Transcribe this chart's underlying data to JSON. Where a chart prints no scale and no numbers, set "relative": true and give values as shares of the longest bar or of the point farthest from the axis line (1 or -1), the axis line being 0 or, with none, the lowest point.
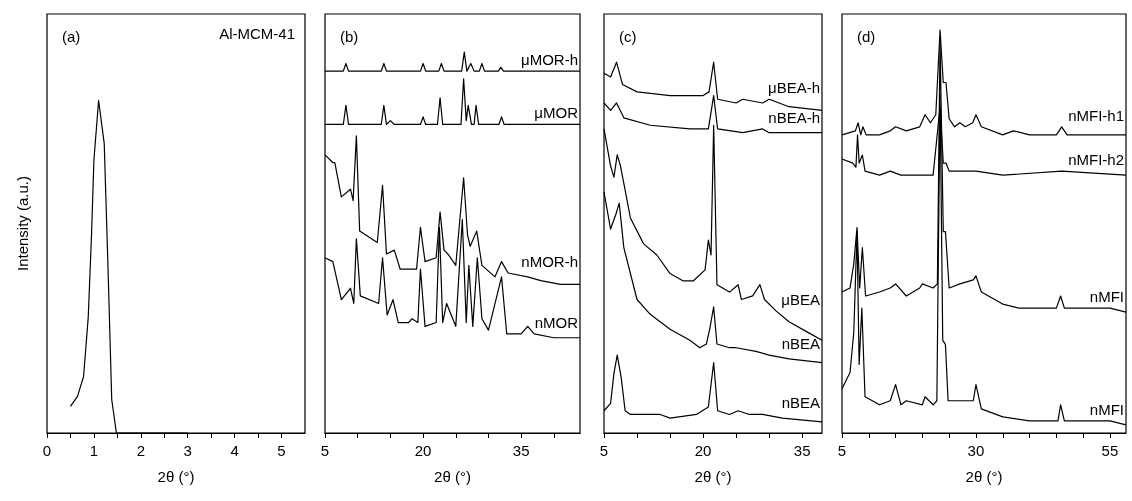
{
  "chart_data": [
    {
      "type": "line",
      "title": "(a)",
      "annotations": [
        "Al-MCM-41"
      ],
      "xlabel": "2θ (°)",
      "ylabel": "Intensity (a.u.)",
      "relative": true,
      "xlim": [
        0,
        5.5
      ],
      "xticks": [
        0,
        {
          "value": 0.5,
          "label": null
        },
        1,
        {
          "value": 1.5,
          "label": null
        },
        2,
        {
          "value": 2.5,
          "label": null
        },
        3,
        {
          "value": 3.5,
          "label": null
        },
        4,
        {
          "value": 4.5,
          "label": null
        },
        5
      ],
      "series": [
        {
          "color": "#000000",
          "x": [
            0.5,
            0.65,
            0.78,
            0.88,
            0.95,
            1.0,
            1.1,
            1.22,
            1.3,
            1.38,
            1.48,
            3.0
          ],
          "values": [
            0.08,
            0.11,
            0.17,
            0.35,
            0.6,
            0.82,
            1.0,
            0.87,
            0.5,
            0.1,
            0,
            0
          ]
        }
      ]
    },
    {
      "type": "line",
      "title": "(b)",
      "xlabel": "2θ (°)",
      "relative": true,
      "xlim": [
        5,
        44
      ],
      "xticks": [
        5,
        {
          "value": 10,
          "label": null
        },
        {
          "value": 15,
          "label": null
        },
        20,
        {
          "value": 25,
          "label": null
        },
        {
          "value": 30,
          "label": null
        },
        35,
        {
          "value": 40,
          "label": null
        }
      ],
      "series": [
        {
          "name": "μMOR-h",
          "color": "#000000",
          "x": [
            5,
            7.8,
            8.2,
            8.6,
            13.6,
            14,
            14.4,
            19.6,
            20,
            20.4,
            22.4,
            22.8,
            23.2,
            25.9,
            26.3,
            26.7,
            27.3,
            27.8,
            28.6,
            29,
            29.4,
            31.5,
            31.9,
            32.3,
            44
          ],
          "values": [
            0.95,
            0.95,
            0.97,
            0.95,
            0.95,
            0.97,
            0.95,
            0.95,
            0.97,
            0.95,
            0.95,
            0.97,
            0.95,
            0.95,
            1.0,
            0.95,
            0.97,
            0.95,
            0.95,
            0.97,
            0.95,
            0.95,
            0.96,
            0.95,
            0.95
          ]
        },
        {
          "name": "μMOR",
          "color": "#000000",
          "x": [
            5,
            7.8,
            8.2,
            8.6,
            13.6,
            14,
            14.4,
            15,
            15.6,
            19.6,
            20,
            20.4,
            22.2,
            22.6,
            23,
            25.8,
            26.2,
            26.6,
            26.9,
            27.4,
            27.8,
            28.1,
            28.5,
            31.6,
            32,
            32.4,
            44
          ],
          "values": [
            0.81,
            0.81,
            0.86,
            0.81,
            0.81,
            0.86,
            0.81,
            0.82,
            0.81,
            0.81,
            0.83,
            0.81,
            0.81,
            0.88,
            0.81,
            0.81,
            0.93,
            0.82,
            0.86,
            0.81,
            0.81,
            0.86,
            0.81,
            0.81,
            0.83,
            0.81,
            0.81
          ]
        },
        {
          "name": "nMOR-h",
          "color": "#000000",
          "x": [
            5,
            6.2,
            6.5,
            7.5,
            8.9,
            9.3,
            9.8,
            10.3,
            13,
            13.8,
            14.4,
            15.6,
            16.5,
            19,
            19.6,
            20.3,
            22,
            22.6,
            23.2,
            23.8,
            25,
            26.2,
            26.8,
            27.2,
            28.2,
            29,
            31,
            32,
            33,
            36,
            38,
            41,
            44
          ],
          "values": [
            0.73,
            0.71,
            0.71,
            0.62,
            0.64,
            0.61,
            0.78,
            0.53,
            0.5,
            0.65,
            0.47,
            0.48,
            0.43,
            0.43,
            0.54,
            0.45,
            0.46,
            0.58,
            0.48,
            0.47,
            0.44,
            0.67,
            0.52,
            0.49,
            0.53,
            0.44,
            0.41,
            0.45,
            0.42,
            0.41,
            0.4,
            0.39,
            0.39
          ]
        },
        {
          "name": "nMOR",
          "color": "#000000",
          "x": [
            5,
            6.2,
            7.5,
            8.9,
            9.4,
            9.8,
            10.4,
            13.2,
            13.8,
            14.5,
            15.4,
            16.2,
            17.8,
            18.3,
            19.2,
            19.6,
            20.3,
            22,
            22.5,
            23,
            23.6,
            25,
            26,
            26.6,
            27,
            27.6,
            28.3,
            29,
            30,
            32,
            32.8,
            35,
            36,
            37,
            40,
            44
          ],
          "values": [
            0.46,
            0.45,
            0.35,
            0.38,
            0.34,
            0.51,
            0.36,
            0.34,
            0.46,
            0.31,
            0.35,
            0.29,
            0.29,
            0.3,
            0.29,
            0.43,
            0.28,
            0.29,
            0.54,
            0.29,
            0.34,
            0.28,
            0.56,
            0.29,
            0.44,
            0.28,
            0.46,
            0.3,
            0.27,
            0.41,
            0.26,
            0.26,
            0.28,
            0.26,
            0.25,
            0.25
          ]
        }
      ]
    },
    {
      "type": "line",
      "title": "(c)",
      "xlabel": "2θ (°)",
      "relative": true,
      "xlim": [
        5,
        38
      ],
      "xticks": [
        5,
        {
          "value": 10,
          "label": null
        },
        {
          "value": 15,
          "label": null
        },
        20,
        {
          "value": 25,
          "label": null
        },
        {
          "value": 30,
          "label": null
        },
        35
      ],
      "series": [
        {
          "name": "μBEA-h",
          "color": "#000000",
          "x": [
            5,
            6,
            6.9,
            7.8,
            10,
            15,
            20,
            20.9,
            21.6,
            22.2,
            25,
            26,
            29,
            30,
            33,
            38
          ],
          "values": [
            0.97,
            0.96,
            1.0,
            0.94,
            0.92,
            0.91,
            0.91,
            0.92,
            1.0,
            0.9,
            0.89,
            0.9,
            0.89,
            0.9,
            0.88,
            0.87
          ]
        },
        {
          "name": "nBEA-h",
          "color": "#000000",
          "x": [
            5,
            6,
            6.9,
            8,
            12,
            18,
            20.8,
            21.6,
            22.2,
            26,
            29,
            30,
            35,
            38
          ],
          "values": [
            0.89,
            0.87,
            0.89,
            0.85,
            0.83,
            0.82,
            0.82,
            0.91,
            0.82,
            0.81,
            0.82,
            0.81,
            0.81,
            0.81
          ]
        },
        {
          "name": "μBEA",
          "color": "#000000",
          "x": [
            5,
            6,
            6.5,
            7,
            7.5,
            9,
            11,
            13,
            15,
            17,
            18.5,
            20.3,
            20.8,
            21.2,
            21.6,
            22.1,
            24,
            25.3,
            25.8,
            27.5,
            28.6,
            29.3,
            31,
            33,
            36,
            38
          ],
          "values": [
            0.82,
            0.72,
            0.69,
            0.75,
            0.72,
            0.58,
            0.51,
            0.48,
            0.43,
            0.41,
            0.41,
            0.44,
            0.52,
            0.48,
            0.83,
            0.4,
            0.38,
            0.4,
            0.36,
            0.37,
            0.4,
            0.36,
            0.33,
            0.3,
            0.27,
            0.25
          ]
        },
        {
          "name": "nBEA",
          "color": "#000000",
          "x": [
            5,
            5.5,
            6,
            6.8,
            7.3,
            8,
            10,
            12,
            15,
            18,
            19.5,
            20.5,
            21,
            21.6,
            22.1,
            24,
            25,
            28,
            30,
            33,
            38
          ],
          "values": [
            0.65,
            0.6,
            0.55,
            0.59,
            0.62,
            0.5,
            0.36,
            0.32,
            0.28,
            0.25,
            0.23,
            0.24,
            0.28,
            0.34,
            0.24,
            0.23,
            0.23,
            0.22,
            0.21,
            0.2,
            0.19
          ]
        },
        {
          "name": "nBEA",
          "color": "#000000",
          "x": [
            5,
            6,
            6.5,
            7,
            7.6,
            8.2,
            9,
            12,
            13.5,
            15,
            19,
            20.8,
            21.6,
            22.2,
            24,
            25.3,
            27,
            29,
            32,
            38
          ],
          "values": [
            0.06,
            0.08,
            0.16,
            0.21,
            0.15,
            0.06,
            0.05,
            0.05,
            0.05,
            0.04,
            0.05,
            0.07,
            0.19,
            0.06,
            0.05,
            0.06,
            0.05,
            0.05,
            0.04,
            0.03
          ]
        }
      ]
    },
    {
      "type": "line",
      "title": "(d)",
      "xlabel": "2θ (°)",
      "relative": true,
      "xlim": [
        5,
        58
      ],
      "xticks": [
        5,
        {
          "value": 10,
          "label": null
        },
        {
          "value": 15,
          "label": null
        },
        {
          "value": 20,
          "label": null
        },
        {
          "value": 25,
          "label": null
        },
        30,
        {
          "value": 35,
          "label": null
        },
        {
          "value": 40,
          "label": null
        },
        {
          "value": 45,
          "label": null
        },
        {
          "value": 50,
          "label": null
        },
        55
      ],
      "series": [
        {
          "name": "nMFI-h1",
          "color": "#000000",
          "x": [
            5,
            7.5,
            8,
            8.5,
            8.9,
            9.5,
            12,
            14,
            15,
            17,
            19.5,
            20.5,
            21.5,
            22.5,
            23.3,
            23.9,
            24.4,
            25,
            26,
            27,
            28,
            29.4,
            30,
            31,
            35,
            37,
            40,
            45,
            46,
            47,
            55,
            58
          ],
          "values": [
            0.74,
            0.75,
            0.77,
            0.74,
            0.76,
            0.74,
            0.74,
            0.75,
            0.76,
            0.75,
            0.76,
            0.79,
            0.77,
            0.79,
            1.0,
            0.87,
            0.87,
            0.78,
            0.76,
            0.77,
            0.76,
            0.77,
            0.79,
            0.76,
            0.74,
            0.75,
            0.74,
            0.74,
            0.76,
            0.74,
            0.74,
            0.74
          ]
        },
        {
          "name": "nMFI-h2",
          "color": "#000000",
          "x": [
            5,
            7,
            7.6,
            7.9,
            8.2,
            8.8,
            9.3,
            12,
            14,
            16,
            22,
            23.3,
            23.9,
            24.4,
            25,
            30,
            35,
            46,
            58
          ],
          "values": [
            0.68,
            0.67,
            0.66,
            0.74,
            0.67,
            0.69,
            0.65,
            0.64,
            0.65,
            0.64,
            0.64,
            0.81,
            0.67,
            0.67,
            0.65,
            0.65,
            0.64,
            0.65,
            0.64
          ]
        },
        {
          "name": "nMFI",
          "color": "#000000",
          "x": [
            5,
            6.5,
            7.2,
            7.8,
            8.3,
            8.8,
            9.4,
            12,
            14,
            15,
            17,
            19.5,
            20,
            22,
            22.8,
            23.3,
            23.9,
            24.3,
            25,
            27,
            29.5,
            30,
            31,
            35,
            38,
            45,
            45.8,
            46.5,
            55,
            58
          ],
          "values": [
            0.35,
            0.36,
            0.42,
            0.51,
            0.36,
            0.46,
            0.34,
            0.35,
            0.36,
            0.37,
            0.34,
            0.36,
            0.37,
            0.36,
            0.37,
            0.97,
            0.5,
            0.5,
            0.36,
            0.37,
            0.38,
            0.39,
            0.35,
            0.32,
            0.31,
            0.31,
            0.34,
            0.31,
            0.31,
            0.3
          ]
        },
        {
          "name": "nMFI",
          "color": "#000000",
          "x": [
            5,
            6.5,
            7.2,
            7.8,
            8.2,
            8.7,
            9.3,
            12,
            14,
            15,
            16,
            17,
            20,
            20.5,
            22,
            22.7,
            23.3,
            23.8,
            24.3,
            24.8,
            27,
            29.5,
            30,
            31,
            35,
            40,
            45.3,
            45.8,
            46.5,
            55,
            58
          ],
          "values": [
            0.11,
            0.15,
            0.25,
            0.5,
            0.17,
            0.31,
            0.09,
            0.07,
            0.08,
            0.12,
            0.07,
            0.08,
            0.07,
            0.09,
            0.07,
            0.08,
            0.84,
            0.23,
            0.22,
            0.08,
            0.08,
            0.08,
            0.12,
            0.06,
            0.04,
            0.03,
            0.03,
            0.07,
            0.03,
            0.03,
            0.02
          ]
        }
      ]
    }
  ]
}
